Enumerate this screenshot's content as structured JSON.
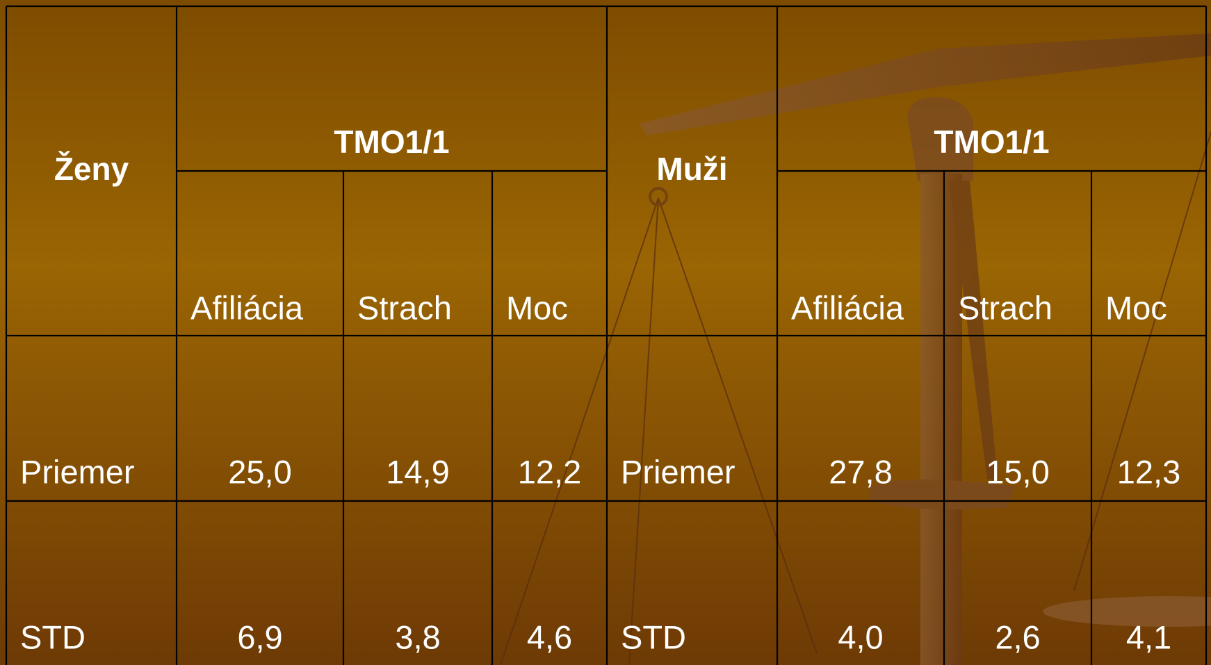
{
  "tables": [
    {
      "group": "Ženy",
      "scale": "TMO1/1",
      "columns": [
        "Afiliácia",
        "Strach",
        "Moc"
      ],
      "rows": [
        {
          "label": "Priemer",
          "values": [
            "25,0",
            "14,9",
            "12,2"
          ]
        },
        {
          "label": "STD",
          "values": [
            "6,9",
            "3,8",
            "4,6"
          ]
        }
      ]
    },
    {
      "group": "Muži",
      "scale": "TMO1/1",
      "columns": [
        "Afiliácia",
        "Strach",
        "Moc"
      ],
      "rows": [
        {
          "label": "Priemer",
          "values": [
            "27,8",
            "15,0",
            "12,3"
          ]
        },
        {
          "label": "STD",
          "values": [
            "4,0",
            "2,6",
            "4,1"
          ]
        }
      ]
    }
  ]
}
